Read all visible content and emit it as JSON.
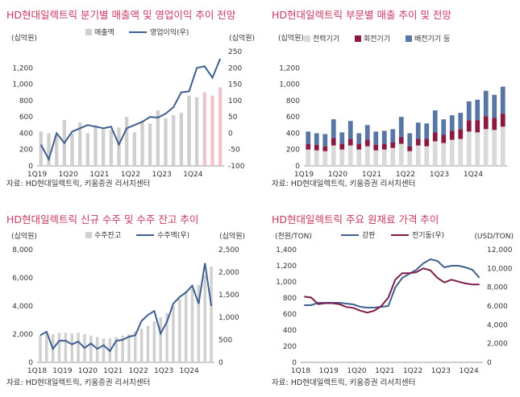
{
  "source_note": "자료: HD현대일렉트릭, 키움증권 리서치센터",
  "chart_data": [
    {
      "id": "sales-op",
      "type": "bar+line",
      "title": "HD현대일렉트릭 분기별 매출액 및 영업이익 추이 전망",
      "left_unit": "(십억원)",
      "right_unit": "(십억원)",
      "ylim": [
        0,
        1400
      ],
      "yticks": [
        0,
        200,
        400,
        600,
        800,
        1000,
        1200
      ],
      "y2lim": [
        -100,
        250
      ],
      "y2ticks": [
        -100,
        -50,
        0,
        50,
        100,
        150,
        200,
        250
      ],
      "tick_labels": [
        {
          "label": "1Q19",
          "index": 0
        },
        {
          "label": "1Q20",
          "index": 4
        },
        {
          "label": "1Q21",
          "index": 8
        },
        {
          "label": "1Q22",
          "index": 12
        },
        {
          "label": "1Q23",
          "index": 16
        },
        {
          "label": "1Q24",
          "index": 20
        }
      ],
      "n": 24,
      "forecast_from": 21,
      "series": [
        {
          "name": "매출액",
          "kind": "bar",
          "axis": "left",
          "color": "#cfcfcf",
          "forecast_color": "#efc3cc",
          "values": [
            420,
            400,
            380,
            560,
            400,
            530,
            400,
            500,
            450,
            440,
            470,
            600,
            410,
            540,
            520,
            680,
            580,
            620,
            650,
            860,
            840,
            900,
            860,
            960
          ]
        },
        {
          "name": "영업이익(우)",
          "kind": "line",
          "axis": "right",
          "color": "#3e5f91",
          "values": [
            -35,
            -80,
            0,
            -30,
            5,
            15,
            25,
            20,
            15,
            20,
            -35,
            15,
            25,
            35,
            50,
            48,
            60,
            80,
            125,
            128,
            200,
            205,
            170,
            228
          ]
        }
      ]
    },
    {
      "id": "division",
      "type": "stacked-bar",
      "title": "HD현대일렉트릭 부문별 매출 추이 및 전망",
      "left_unit": "(십억원)",
      "ylim": [
        0,
        1400
      ],
      "yticks": [
        0,
        200,
        400,
        600,
        800,
        1000,
        1200
      ],
      "tick_labels": [
        {
          "label": "1Q19",
          "index": 0
        },
        {
          "label": "1Q20",
          "index": 4
        },
        {
          "label": "1Q21",
          "index": 8
        },
        {
          "label": "1Q22",
          "index": 12
        },
        {
          "label": "1Q23",
          "index": 16
        },
        {
          "label": "1Q24",
          "index": 20
        }
      ],
      "n": 24,
      "series": [
        {
          "name": "전력기기",
          "color": "#d9d9d9",
          "values": [
            200,
            190,
            180,
            250,
            200,
            250,
            200,
            240,
            190,
            200,
            220,
            270,
            180,
            250,
            240,
            300,
            280,
            320,
            330,
            420,
            410,
            450,
            440,
            480
          ]
        },
        {
          "name": "회전기기",
          "color": "#8b1a43",
          "values": [
            70,
            70,
            60,
            90,
            70,
            80,
            70,
            80,
            70,
            70,
            70,
            80,
            60,
            80,
            90,
            110,
            100,
            110,
            120,
            140,
            150,
            160,
            150,
            160
          ]
        },
        {
          "name": "배전기기 등",
          "color": "#5876a3",
          "values": [
            150,
            140,
            150,
            230,
            140,
            220,
            130,
            180,
            160,
            160,
            160,
            250,
            160,
            200,
            190,
            270,
            190,
            190,
            200,
            230,
            250,
            310,
            280,
            330
          ]
        }
      ]
    },
    {
      "id": "orders",
      "type": "bar+line",
      "title": "HD현대일렉트릭 신규 수주 및 수주 잔고 추이",
      "left_unit": "(십억원)",
      "right_unit": "(십억원)",
      "ylim": [
        0,
        8000
      ],
      "yticks": [
        0,
        2000,
        4000,
        6000,
        8000
      ],
      "y2lim": [
        0,
        2500
      ],
      "y2ticks": [
        0,
        500,
        1000,
        1500,
        2000,
        2500
      ],
      "tick_labels": [
        {
          "label": "1Q18",
          "index": 0
        },
        {
          "label": "1Q19",
          "index": 4
        },
        {
          "label": "1Q20",
          "index": 8
        },
        {
          "label": "1Q21",
          "index": 12
        },
        {
          "label": "1Q22",
          "index": 16
        },
        {
          "label": "1Q23",
          "index": 20
        },
        {
          "label": "1Q24",
          "index": 24
        }
      ],
      "n": 28,
      "series": [
        {
          "name": "수주잔고",
          "kind": "bar",
          "axis": "left",
          "color": "#d0d0d0",
          "values": [
            1900,
            2100,
            2000,
            2100,
            2100,
            2050,
            2100,
            2000,
            1900,
            1800,
            1700,
            1700,
            1800,
            1900,
            2000,
            2200,
            2400,
            2600,
            2900,
            3200,
            3500,
            4000,
            4500,
            5000,
            5200,
            5500,
            6200,
            6800
          ]
        },
        {
          "name": "수주액(우)",
          "kind": "line",
          "axis": "right",
          "color": "#3e5f91",
          "values": [
            600,
            680,
            300,
            480,
            480,
            400,
            460,
            320,
            420,
            300,
            380,
            250,
            480,
            500,
            570,
            600,
            920,
            1050,
            1140,
            640,
            900,
            1300,
            1450,
            1550,
            1700,
            1300,
            2200,
            1250
          ]
        }
      ]
    },
    {
      "id": "materials",
      "type": "line",
      "title": "HD현대일렉트릭 주요 원재료 가격 추이",
      "left_unit": "(천원/TON)",
      "right_unit": "(USD/TON)",
      "ylim": [
        0,
        1400
      ],
      "yticks": [
        0,
        200,
        400,
        600,
        800,
        1000,
        1200,
        1400
      ],
      "y2lim": [
        0,
        12000
      ],
      "y2ticks": [
        0,
        2000,
        4000,
        6000,
        8000,
        10000,
        12000
      ],
      "tick_labels": [
        {
          "label": "1Q18",
          "index": 0
        },
        {
          "label": "1Q19",
          "index": 4
        },
        {
          "label": "1Q20",
          "index": 8
        },
        {
          "label": "1Q21",
          "index": 12
        },
        {
          "label": "1Q22",
          "index": 16
        },
        {
          "label": "1Q23",
          "index": 20
        },
        {
          "label": "1Q24",
          "index": 24
        }
      ],
      "n": 26,
      "series": [
        {
          "name": "강판",
          "axis": "left",
          "color": "#3e5f91",
          "values": [
            710,
            710,
            740,
            740,
            740,
            740,
            730,
            720,
            690,
            680,
            680,
            690,
            700,
            930,
            1050,
            1100,
            1150,
            1230,
            1280,
            1260,
            1180,
            1200,
            1200,
            1180,
            1150,
            1050
          ]
        },
        {
          "name": "전기동(우)",
          "axis": "right",
          "color": "#7d1e4a",
          "values": [
            7000,
            6900,
            6200,
            6300,
            6300,
            6200,
            5900,
            5800,
            5500,
            5300,
            5500,
            6000,
            6900,
            8800,
            9500,
            9500,
            9600,
            10000,
            9800,
            9000,
            8500,
            8800,
            8600,
            8400,
            8300,
            8300
          ]
        }
      ]
    }
  ]
}
